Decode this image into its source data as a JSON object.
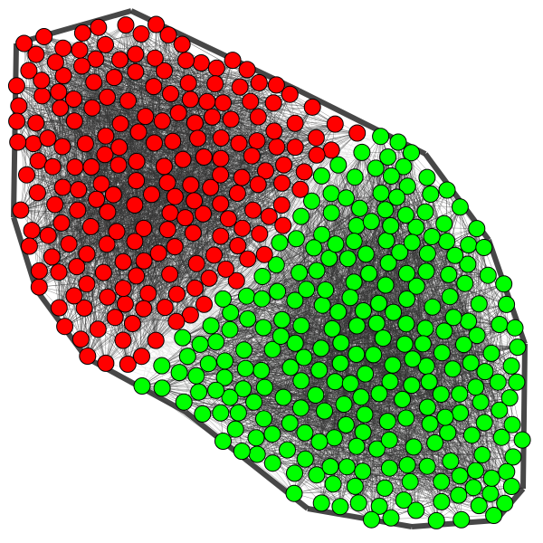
{
  "graph": {
    "type": "network",
    "clusters": [
      {
        "id": "red",
        "color": "#ff0000",
        "node_count": 230
      },
      {
        "id": "green",
        "color": "#00ff00",
        "node_count": 240
      }
    ],
    "node_stroke_color": "#000000",
    "edge_color": "#333333",
    "inter_cluster_edge_color": "#d9d9d9",
    "background_color": "#ffffff"
  }
}
